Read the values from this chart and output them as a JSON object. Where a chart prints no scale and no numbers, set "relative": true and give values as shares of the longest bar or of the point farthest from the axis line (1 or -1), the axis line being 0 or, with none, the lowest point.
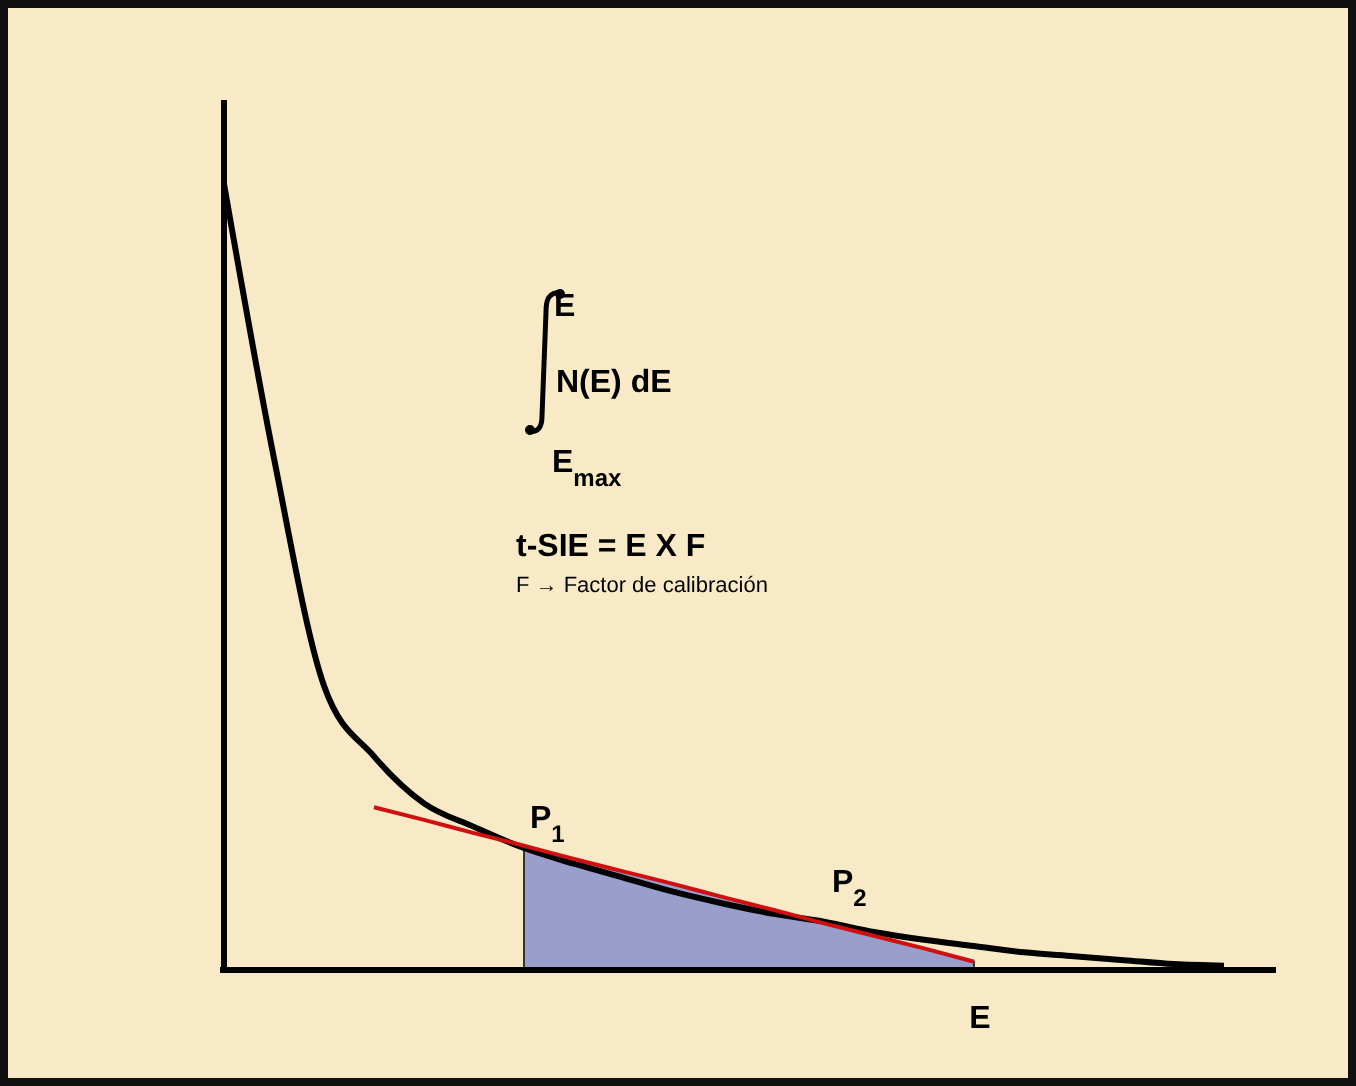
{
  "chart_data": {
    "type": "line",
    "relative": true,
    "xlabel": "E",
    "categories": [
      null,
      null,
      null,
      null,
      null,
      null,
      null,
      null,
      null,
      null,
      null,
      null,
      null,
      null,
      null,
      null,
      null,
      null,
      null,
      null,
      null
    ],
    "series": [
      {
        "type": "area",
        "color": "#9a9ecb",
        "values": [
          null,
          null,
          null,
          null,
          null,
          null,
          0.156,
          0.139,
          0.123,
          0.107,
          0.09,
          0.074,
          0.057,
          0.041,
          0.025,
          0.008,
          null,
          null,
          null,
          null,
          null
        ]
      },
      {
        "color": "#000000",
        "values": [
          1.0,
          0.65,
          0.36,
          0.27,
          0.21,
          0.18,
          0.153,
          0.133,
          0.115,
          0.097,
          0.082,
          0.069,
          0.059,
          0.046,
          0.036,
          0.028,
          0.02,
          0.015,
          0.01,
          0.005,
          0.003
        ]
      },
      {
        "color": "#d01010",
        "values": [
          null,
          null,
          null,
          0.205,
          0.189,
          0.172,
          0.156,
          0.139,
          0.123,
          0.107,
          0.09,
          0.074,
          0.057,
          0.041,
          0.025,
          0.008,
          null,
          null,
          null,
          null,
          null
        ]
      }
    ],
    "annotations": [
      "E",
      "N(E) dE",
      "E$_{max}$",
      "t-SIE = E X F",
      "F → Factor de calibración",
      "P$_{1}$",
      "P$_{2}$"
    ]
  }
}
